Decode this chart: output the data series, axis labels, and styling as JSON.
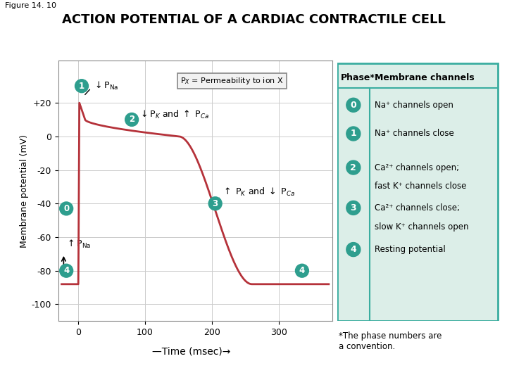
{
  "figure_label": "Figure 14. 10",
  "title": "ACTION POTENTIAL OF A CARDIAC CONTRACTILE CELL",
  "xlabel": "Time (msec)",
  "ylabel": "Membrane potential (mV)",
  "ylim": [
    -110,
    45
  ],
  "xlim": [
    -30,
    380
  ],
  "yticks": [
    20,
    0,
    -20,
    -40,
    -60,
    -80,
    -100
  ],
  "ytick_labels": [
    "+20",
    "0",
    "-20",
    "-40",
    "-60",
    "-80",
    "-100"
  ],
  "xticks": [
    0,
    100,
    200,
    300
  ],
  "curve_color": "#b5323a",
  "background_color": "#ffffff",
  "grid_color": "#cccccc",
  "teal_color": "#2e9e8e",
  "table_bg": "#dceee8",
  "table_border": "#3aada0",
  "annotation_box_facecolor": "#efefef",
  "annotation_box_edge": "#999999"
}
